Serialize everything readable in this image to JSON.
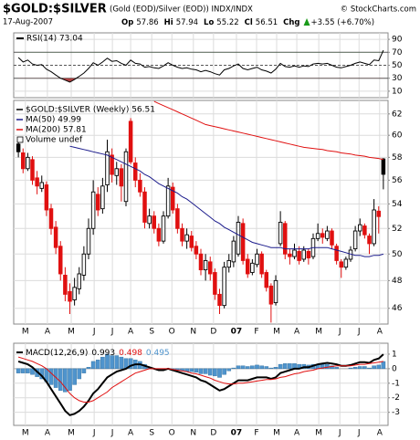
{
  "header": {
    "title": "$GOLD:$SILVER",
    "subtitle": "(Gold (EOD)/Silver (EOD))  INDX/INDX",
    "source": "© StockCharts.com",
    "date": "17-Aug-2007",
    "quote": [
      {
        "label": "Op",
        "value": "57.86"
      },
      {
        "label": "Hi",
        "value": "57.94"
      },
      {
        "label": "Lo",
        "value": "55.22"
      },
      {
        "label": "Cl",
        "value": "56.51"
      },
      {
        "label": "Chg",
        "value": "+3.55 (+6.70%)"
      }
    ]
  },
  "chart_data": [
    {
      "type": "line",
      "legend": "RSI(14) 73.04",
      "color": "#000000",
      "fill_low": "#b04040",
      "fill_high": "#2e8b2e",
      "overbought": 70,
      "oversold": 30,
      "midline": 50,
      "xlim": [
        -1,
        79
      ],
      "ylim": [
        0,
        100
      ],
      "yticks": [
        10,
        30,
        50,
        70,
        90
      ],
      "grid": true,
      "values": [
        62,
        55,
        58,
        52,
        50,
        51,
        44,
        40,
        35,
        30,
        27,
        24,
        28,
        33,
        38,
        45,
        54,
        50,
        55,
        61,
        56,
        57,
        53,
        50,
        58,
        53,
        52,
        47,
        48,
        46,
        45,
        49,
        54,
        50,
        47,
        45,
        46,
        44,
        43,
        40,
        42,
        40,
        37,
        35,
        43,
        45,
        49,
        52,
        45,
        43,
        45,
        47,
        43,
        41,
        38,
        44,
        53,
        48,
        47,
        49,
        47,
        49,
        48,
        52,
        53,
        52,
        53,
        50,
        47,
        46,
        48,
        50,
        53,
        55,
        53,
        51,
        58,
        57,
        73.04
      ]
    },
    {
      "type": "candlestick",
      "ohlc_name": "$GOLD:$SILVER (Weekly) 56.51",
      "note": "Volume undef",
      "up_color": "#000000",
      "down_color": "#e01010",
      "log_scale": true,
      "grid": true,
      "xlim": [
        -1,
        79
      ],
      "ylim": [
        44.9,
        63.3
      ],
      "yticks": [
        46,
        48,
        50,
        52,
        54,
        56,
        58,
        60,
        62
      ],
      "xticks": [
        {
          "value": 1.5,
          "label": "M"
        },
        {
          "value": 6.2,
          "label": "A"
        },
        {
          "value": 11.3,
          "label": "M"
        },
        {
          "value": 16.2,
          "label": "J"
        },
        {
          "value": 20.1,
          "label": "J"
        },
        {
          "value": 24,
          "label": "A"
        },
        {
          "value": 28.5,
          "label": "S"
        },
        {
          "value": 32.8,
          "label": "O"
        },
        {
          "value": 37.4,
          "label": "N"
        },
        {
          "value": 41.7,
          "label": "D"
        },
        {
          "value": 46.6,
          "label": "07"
        },
        {
          "value": 50.9,
          "label": "F"
        },
        {
          "value": 55.2,
          "label": "M"
        },
        {
          "value": 59.5,
          "label": "A"
        },
        {
          "value": 64.2,
          "label": "M"
        },
        {
          "value": 68.7,
          "label": "J"
        },
        {
          "value": 72.8,
          "label": "J"
        },
        {
          "value": 77.2,
          "label": "A"
        }
      ],
      "ohlc": [
        [
          59.2,
          59.6,
          58.0,
          58.5
        ],
        [
          58.4,
          58.8,
          56.6,
          57.0
        ],
        [
          57.0,
          58.4,
          56.8,
          58.0
        ],
        [
          57.8,
          58.1,
          55.6,
          56.0
        ],
        [
          56.2,
          56.8,
          54.8,
          55.5
        ],
        [
          55.3,
          56.4,
          55.0,
          55.8
        ],
        [
          55.6,
          55.9,
          53.0,
          53.5
        ],
        [
          53.6,
          54.0,
          51.5,
          52.0
        ],
        [
          52.1,
          52.6,
          50.0,
          50.5
        ],
        [
          50.6,
          51.0,
          48.0,
          48.5
        ],
        [
          48.4,
          49.0,
          46.5,
          47.0
        ],
        [
          47.2,
          47.8,
          45.6,
          46.5
        ],
        [
          46.6,
          48.2,
          46.2,
          47.5
        ],
        [
          47.4,
          49.0,
          47.0,
          48.5
        ],
        [
          48.4,
          50.6,
          48.0,
          50.0
        ],
        [
          50.0,
          52.8,
          49.6,
          52.0
        ],
        [
          52.0,
          56.0,
          51.5,
          55.0
        ],
        [
          54.8,
          55.4,
          53.0,
          53.5
        ],
        [
          53.6,
          56.2,
          53.2,
          55.5
        ],
        [
          55.6,
          59.6,
          55.0,
          58.5
        ],
        [
          58.2,
          58.8,
          55.8,
          56.5
        ],
        [
          56.4,
          57.6,
          55.6,
          57.0
        ],
        [
          57.0,
          57.4,
          54.2,
          55.5
        ],
        [
          54.2,
          58.8,
          53.8,
          58.5
        ],
        [
          61.3,
          61.6,
          57.4,
          57.6
        ],
        [
          57.5,
          58.0,
          55.4,
          56.0
        ],
        [
          56.0,
          56.6,
          54.6,
          55.0
        ],
        [
          55.0,
          55.4,
          52.0,
          52.5
        ],
        [
          52.4,
          53.6,
          52.0,
          53.0
        ],
        [
          53.0,
          53.4,
          51.6,
          52.0
        ],
        [
          52.0,
          52.4,
          50.6,
          51.0
        ],
        [
          51.0,
          53.4,
          50.8,
          53.0
        ],
        [
          53.0,
          56.2,
          52.8,
          55.5
        ],
        [
          55.4,
          55.8,
          53.2,
          53.5
        ],
        [
          53.6,
          54.0,
          51.6,
          52.0
        ],
        [
          52.0,
          52.4,
          50.6,
          51.0
        ],
        [
          51.0,
          52.0,
          50.4,
          51.5
        ],
        [
          51.4,
          51.8,
          50.2,
          50.5
        ],
        [
          50.6,
          51.0,
          49.6,
          50.0
        ],
        [
          50.0,
          50.4,
          48.4,
          48.8
        ],
        [
          48.8,
          50.0,
          48.0,
          49.5
        ],
        [
          49.4,
          49.8,
          48.0,
          48.5
        ],
        [
          48.6,
          48.9,
          46.6,
          47.0
        ],
        [
          47.0,
          47.4,
          45.6,
          46.2
        ],
        [
          46.2,
          49.4,
          46.0,
          49.0
        ],
        [
          49.0,
          50.0,
          48.6,
          49.5
        ],
        [
          49.4,
          51.4,
          49.0,
          51.0
        ],
        [
          50.0,
          53.0,
          49.8,
          52.5
        ],
        [
          52.4,
          52.8,
          49.2,
          49.5
        ],
        [
          49.6,
          50.0,
          48.2,
          48.5
        ],
        [
          48.6,
          49.6,
          48.4,
          49.3
        ],
        [
          49.2,
          50.4,
          49.0,
          50.0
        ],
        [
          50.0,
          50.2,
          48.2,
          48.5
        ],
        [
          48.6,
          48.8,
          47.2,
          47.5
        ],
        [
          47.6,
          47.8,
          45.0,
          46.3
        ],
        [
          46.4,
          48.4,
          46.2,
          48.0
        ],
        [
          50.8,
          53.4,
          50.6,
          52.5
        ],
        [
          52.4,
          52.6,
          49.6,
          50.0
        ],
        [
          50.0,
          50.4,
          49.2,
          49.8
        ],
        [
          49.8,
          50.8,
          49.6,
          50.3
        ],
        [
          50.2,
          50.6,
          49.2,
          49.5
        ],
        [
          49.6,
          50.6,
          49.4,
          50.3
        ],
        [
          50.2,
          50.4,
          49.2,
          49.7
        ],
        [
          49.8,
          51.6,
          49.6,
          51.2
        ],
        [
          51.2,
          52.4,
          51.0,
          51.6
        ],
        [
          51.6,
          52.0,
          50.8,
          51.3
        ],
        [
          51.2,
          52.2,
          51.0,
          51.8
        ],
        [
          51.8,
          52.0,
          50.4,
          50.7
        ],
        [
          50.6,
          50.8,
          49.2,
          49.5
        ],
        [
          49.4,
          49.6,
          48.2,
          49.0
        ],
        [
          49.0,
          49.8,
          48.8,
          49.6
        ],
        [
          49.6,
          50.6,
          49.4,
          50.3
        ],
        [
          50.4,
          52.2,
          50.2,
          51.8
        ],
        [
          51.8,
          52.8,
          51.4,
          52.3
        ],
        [
          52.2,
          52.4,
          51.2,
          51.5
        ],
        [
          51.4,
          51.6,
          50.0,
          50.8
        ],
        [
          50.8,
          54.4,
          50.6,
          53.5
        ],
        [
          53.4,
          53.8,
          51.6,
          52.96
        ],
        [
          57.86,
          57.94,
          55.22,
          56.51
        ]
      ],
      "series": [
        {
          "name": "MA(50) 49.99",
          "color": "#1c1c8c",
          "values": [
            null,
            null,
            null,
            null,
            null,
            null,
            null,
            null,
            null,
            null,
            null,
            59.0,
            58.9,
            58.8,
            58.7,
            58.6,
            58.5,
            58.4,
            58.3,
            58.2,
            58.0,
            57.8,
            57.6,
            57.4,
            57.2,
            57.0,
            56.8,
            56.5,
            56.3,
            56.0,
            55.7,
            55.5,
            55.3,
            55.1,
            54.9,
            54.6,
            54.4,
            54.1,
            53.8,
            53.5,
            53.2,
            52.9,
            52.6,
            52.4,
            52.1,
            51.9,
            51.7,
            51.5,
            51.3,
            51.1,
            50.9,
            50.8,
            50.7,
            50.6,
            50.5,
            50.5,
            50.5,
            50.4,
            50.4,
            50.4,
            50.4,
            50.4,
            50.4,
            50.5,
            50.5,
            50.5,
            50.5,
            50.4,
            50.3,
            50.2,
            50.1,
            50.0,
            49.9,
            49.9,
            49.8,
            49.8,
            49.9,
            49.9,
            49.99
          ]
        },
        {
          "name": "MA(200) 57.81",
          "color": "#e01010",
          "values": [
            null,
            null,
            null,
            null,
            null,
            null,
            null,
            null,
            null,
            null,
            null,
            null,
            null,
            null,
            null,
            null,
            null,
            null,
            null,
            null,
            null,
            null,
            null,
            null,
            null,
            null,
            null,
            null,
            null,
            63.2,
            63.0,
            62.8,
            62.6,
            62.4,
            62.2,
            62.0,
            61.8,
            61.6,
            61.4,
            61.2,
            61.0,
            60.9,
            60.8,
            60.7,
            60.6,
            60.5,
            60.4,
            60.3,
            60.2,
            60.1,
            60.0,
            59.9,
            59.8,
            59.7,
            59.6,
            59.5,
            59.4,
            59.3,
            59.2,
            59.1,
            59.0,
            58.9,
            58.85,
            58.8,
            58.75,
            58.7,
            58.6,
            58.55,
            58.5,
            58.4,
            58.35,
            58.3,
            58.2,
            58.15,
            58.1,
            58.0,
            57.95,
            57.9,
            57.81
          ]
        }
      ]
    },
    {
      "type": "macd",
      "legend": "MACD(12,26,9)",
      "legend_values": [
        "0.993",
        "0.498",
        "0.495"
      ],
      "grid": true,
      "xlim": [
        -1,
        79
      ],
      "ylim": [
        -3.9,
        1.75
      ],
      "yticks": [
        -3,
        -2,
        -1,
        0,
        1
      ],
      "xticks": [
        {
          "value": 1.5,
          "label": "M"
        },
        {
          "value": 6.2,
          "label": "A"
        },
        {
          "value": 11.3,
          "label": "M"
        },
        {
          "value": 16.2,
          "label": "J"
        },
        {
          "value": 20.1,
          "label": "J"
        },
        {
          "value": 24,
          "label": "A"
        },
        {
          "value": 28.5,
          "label": "S"
        },
        {
          "value": 32.8,
          "label": "O"
        },
        {
          "value": 37.4,
          "label": "N"
        },
        {
          "value": 41.7,
          "label": "D"
        },
        {
          "value": 46.6,
          "label": "07"
        },
        {
          "value": 50.9,
          "label": "F"
        },
        {
          "value": 55.2,
          "label": "M"
        },
        {
          "value": 59.5,
          "label": "A"
        },
        {
          "value": 64.2,
          "label": "M"
        },
        {
          "value": 68.7,
          "label": "J"
        },
        {
          "value": 72.8,
          "label": "J"
        },
        {
          "value": 77.2,
          "label": "A"
        }
      ],
      "series": [
        {
          "style": "line",
          "color": "#000000",
          "values": [
            0.5,
            0.4,
            0.3,
            0.1,
            -0.2,
            -0.5,
            -0.9,
            -1.4,
            -1.9,
            -2.4,
            -2.9,
            -3.2,
            -3.1,
            -2.9,
            -2.6,
            -2.2,
            -1.7,
            -1.4,
            -1.0,
            -0.6,
            -0.4,
            -0.2,
            -0.1,
            0.0,
            0.2,
            0.3,
            0.3,
            0.2,
            0.1,
            0.0,
            -0.1,
            -0.1,
            0.0,
            -0.1,
            -0.2,
            -0.3,
            -0.4,
            -0.5,
            -0.6,
            -0.8,
            -0.9,
            -1.1,
            -1.3,
            -1.5,
            -1.4,
            -1.2,
            -1.0,
            -0.8,
            -0.8,
            -0.8,
            -0.7,
            -0.6,
            -0.6,
            -0.6,
            -0.7,
            -0.6,
            -0.3,
            -0.2,
            -0.1,
            0.0,
            0.0,
            0.1,
            0.1,
            0.2,
            0.3,
            0.35,
            0.4,
            0.35,
            0.3,
            0.2,
            0.2,
            0.25,
            0.35,
            0.45,
            0.45,
            0.4,
            0.6,
            0.7,
            0.993
          ]
        },
        {
          "style": "line",
          "color": "#e01010",
          "values": [
            0.8,
            0.7,
            0.6,
            0.5,
            0.35,
            0.2,
            0.0,
            -0.3,
            -0.6,
            -0.9,
            -1.3,
            -1.7,
            -2.0,
            -2.2,
            -2.3,
            -2.3,
            -2.2,
            -2.0,
            -1.8,
            -1.6,
            -1.3,
            -1.1,
            -0.9,
            -0.7,
            -0.5,
            -0.3,
            -0.2,
            -0.1,
            0.0,
            0.0,
            0.0,
            0.0,
            0.0,
            -0.05,
            -0.1,
            -0.15,
            -0.2,
            -0.3,
            -0.35,
            -0.45,
            -0.55,
            -0.65,
            -0.8,
            -0.9,
            -1.0,
            -1.05,
            -1.05,
            -1.0,
            -1.0,
            -0.95,
            -0.9,
            -0.85,
            -0.8,
            -0.75,
            -0.75,
            -0.7,
            -0.6,
            -0.55,
            -0.45,
            -0.35,
            -0.3,
            -0.2,
            -0.15,
            -0.1,
            0.0,
            0.05,
            0.1,
            0.15,
            0.2,
            0.2,
            0.2,
            0.2,
            0.25,
            0.3,
            0.3,
            0.35,
            0.4,
            0.45,
            0.498
          ]
        },
        {
          "style": "bar",
          "color": "#4f94cd",
          "values": [
            -0.3,
            -0.3,
            -0.3,
            -0.4,
            -0.55,
            -0.7,
            -0.9,
            -1.1,
            -1.3,
            -1.5,
            -1.6,
            -1.5,
            -1.1,
            -0.7,
            -0.3,
            0.1,
            0.5,
            0.6,
            0.8,
            1.0,
            0.9,
            0.9,
            0.8,
            0.7,
            0.7,
            0.6,
            0.5,
            0.3,
            0.1,
            0.0,
            -0.1,
            -0.1,
            0.0,
            -0.05,
            -0.1,
            -0.15,
            -0.2,
            -0.2,
            -0.25,
            -0.35,
            -0.35,
            -0.45,
            -0.5,
            -0.6,
            -0.4,
            -0.15,
            0.05,
            0.2,
            0.2,
            0.15,
            0.2,
            0.25,
            0.2,
            0.15,
            0.05,
            0.1,
            0.3,
            0.35,
            0.35,
            0.35,
            0.3,
            0.3,
            0.25,
            0.3,
            0.3,
            0.3,
            0.3,
            0.2,
            0.1,
            0.0,
            0.0,
            0.05,
            0.1,
            0.15,
            0.15,
            0.05,
            0.2,
            0.25,
            0.495
          ]
        }
      ]
    }
  ]
}
